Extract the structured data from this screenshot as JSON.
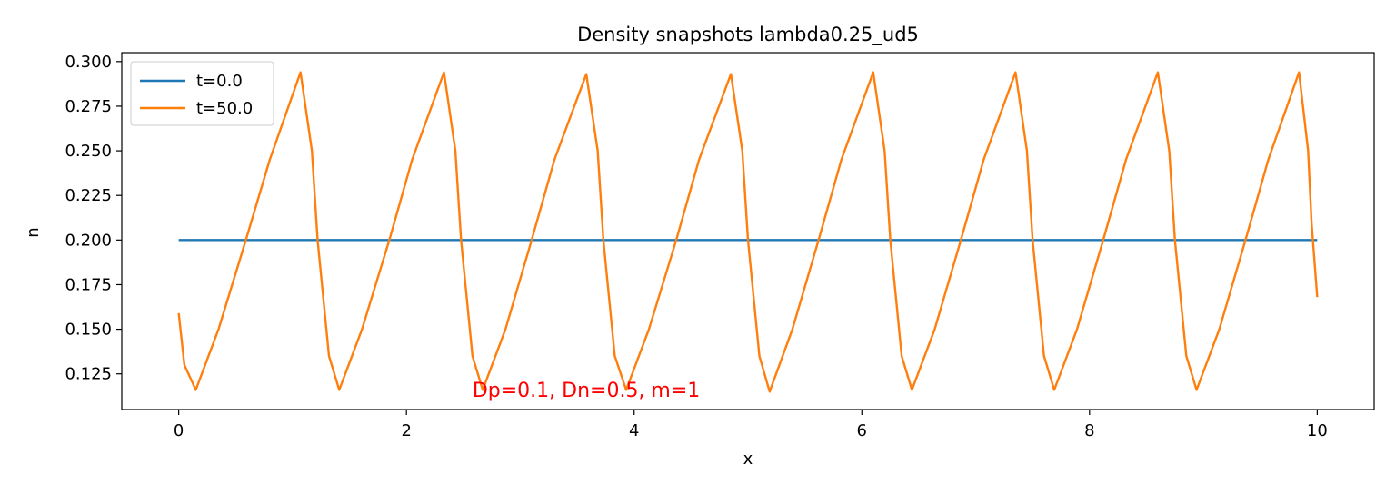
{
  "chart_data": {
    "type": "line",
    "title": "Density snapshots  lambda0.25_ud5",
    "xlabel": "x",
    "ylabel": "n",
    "xlim": [
      -0.5,
      10.5
    ],
    "ylim": [
      0.105,
      0.305
    ],
    "xticks": [
      0,
      2,
      4,
      6,
      8,
      10
    ],
    "xtick_labels": [
      "0",
      "2",
      "4",
      "6",
      "8",
      "10"
    ],
    "yticks": [
      0.125,
      0.15,
      0.175,
      0.2,
      0.225,
      0.25,
      0.275,
      0.3
    ],
    "ytick_labels": [
      "0.125",
      "0.150",
      "0.175",
      "0.200",
      "0.225",
      "0.250",
      "0.275",
      "0.300"
    ],
    "grid": false,
    "legend_location": "upper left",
    "series": [
      {
        "name": "t=0.0",
        "color": "#1f77b4",
        "x": [
          0,
          10
        ],
        "y": [
          0.2,
          0.2
        ]
      },
      {
        "name": "t=50.0",
        "color": "#ff7f0e",
        "x": [
          0.0,
          0.05,
          0.15,
          0.35,
          0.59,
          0.8,
          1.07,
          1.17,
          1.22,
          1.32,
          1.41,
          1.61,
          1.85,
          2.05,
          2.33,
          2.43,
          2.48,
          2.58,
          2.67,
          2.87,
          3.1,
          3.3,
          3.58,
          3.68,
          3.73,
          3.83,
          3.93,
          4.13,
          4.37,
          4.57,
          4.85,
          4.95,
          5.0,
          5.1,
          5.19,
          5.39,
          5.62,
          5.82,
          6.1,
          6.2,
          6.25,
          6.35,
          6.44,
          6.64,
          6.87,
          7.07,
          7.35,
          7.45,
          7.5,
          7.6,
          7.69,
          7.89,
          8.12,
          8.32,
          8.6,
          8.7,
          8.75,
          8.85,
          8.94,
          9.14,
          9.37,
          9.57,
          9.84,
          9.92,
          9.95,
          10.0
        ],
        "y": [
          0.159,
          0.13,
          0.116,
          0.15,
          0.2,
          0.245,
          0.294,
          0.25,
          0.2,
          0.135,
          0.116,
          0.15,
          0.2,
          0.245,
          0.294,
          0.25,
          0.2,
          0.135,
          0.116,
          0.15,
          0.2,
          0.245,
          0.293,
          0.25,
          0.2,
          0.135,
          0.116,
          0.15,
          0.2,
          0.245,
          0.293,
          0.25,
          0.2,
          0.135,
          0.115,
          0.15,
          0.2,
          0.245,
          0.294,
          0.25,
          0.2,
          0.135,
          0.116,
          0.15,
          0.2,
          0.245,
          0.294,
          0.25,
          0.2,
          0.135,
          0.116,
          0.15,
          0.2,
          0.245,
          0.294,
          0.25,
          0.2,
          0.135,
          0.116,
          0.15,
          0.2,
          0.245,
          0.294,
          0.25,
          0.21,
          0.168
        ]
      }
    ],
    "annotation": {
      "text": "Dp=0.1, Dn=0.5, m=1",
      "x": 2.58,
      "y": 0.112,
      "color": "#ff0000"
    }
  }
}
